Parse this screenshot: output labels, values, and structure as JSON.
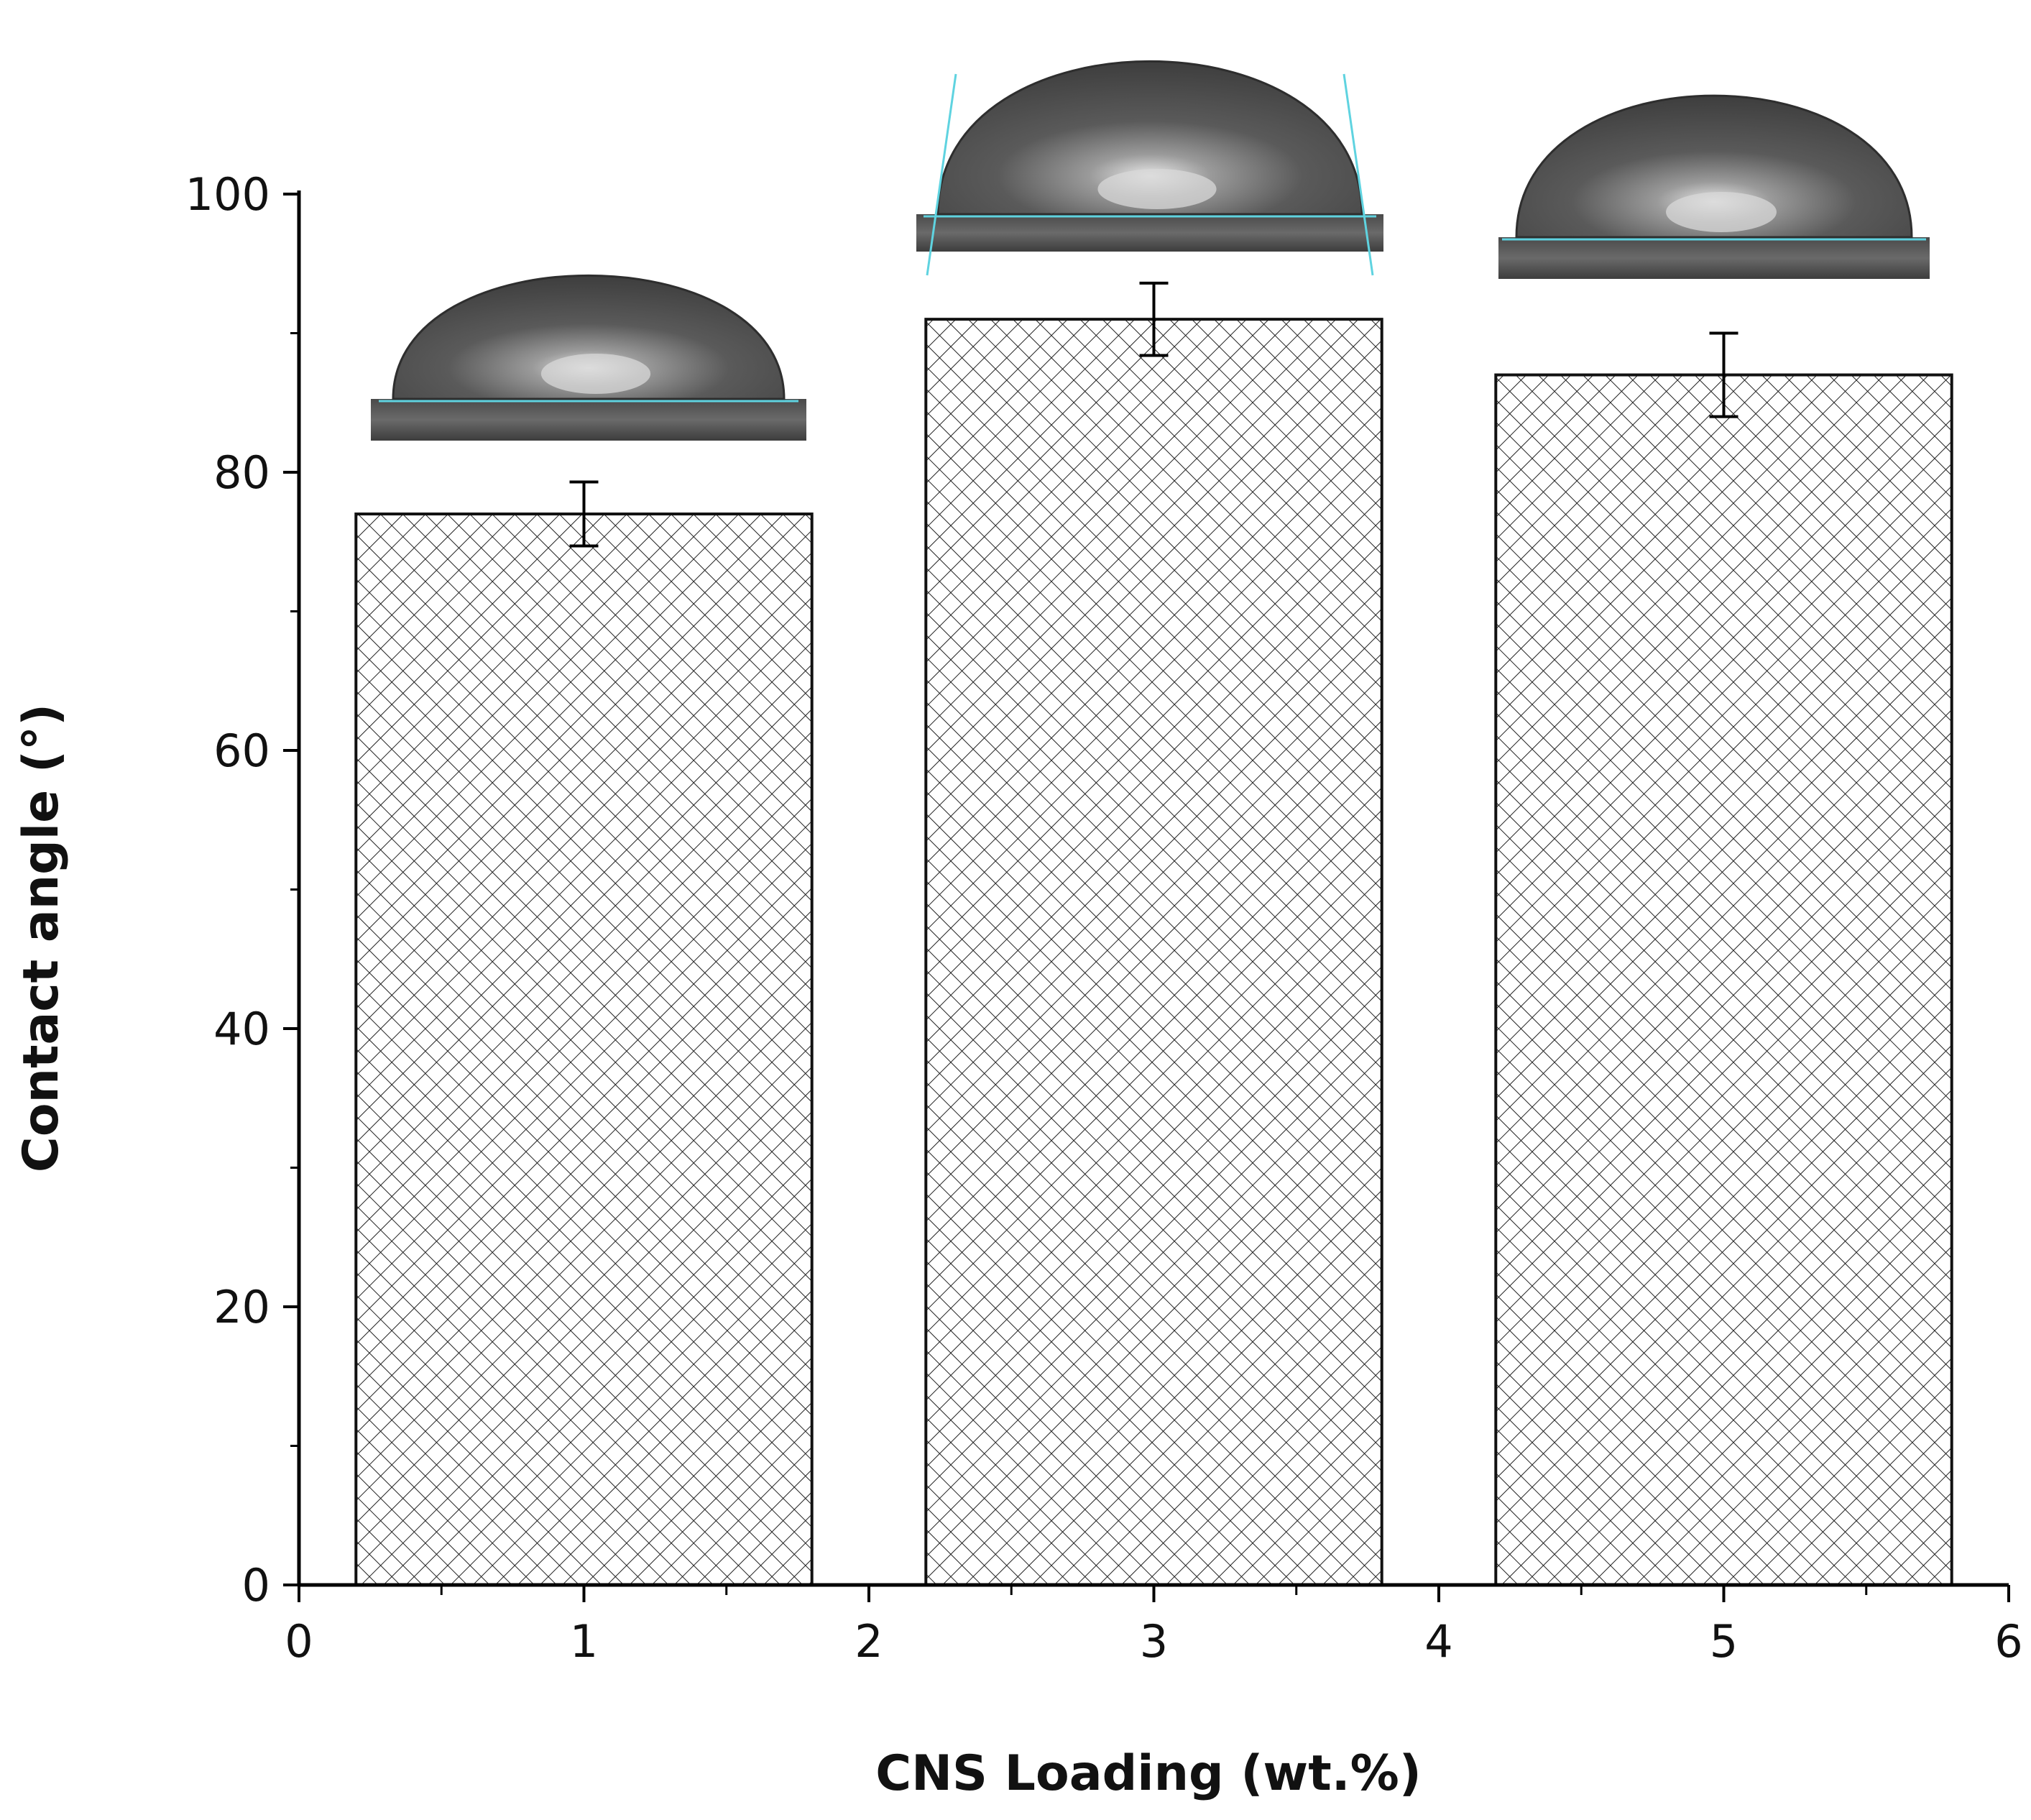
{
  "chart_data": {
    "type": "bar",
    "title": "",
    "xlabel": "CNS Loading (wt.%)",
    "ylabel": "Contact angle (°)",
    "xlim": [
      0,
      6
    ],
    "ylim": [
      0,
      100
    ],
    "x_ticks": [
      "0",
      "1",
      "2",
      "3",
      "4",
      "5",
      "6"
    ],
    "y_ticks": [
      "0",
      "20",
      "40",
      "60",
      "80",
      "100"
    ],
    "grid": false,
    "legend": "none",
    "bar_pattern": "crosshatch",
    "x": [
      1,
      3,
      5
    ],
    "values": [
      77,
      91,
      87
    ],
    "errors": [
      2.3,
      2.6,
      3.0
    ],
    "insets": [
      {
        "x": 1,
        "description": "droplet-photo",
        "contact_line_color": "#5fd3e0"
      },
      {
        "x": 3,
        "description": "droplet-photo",
        "contact_line_color": "#5fd3e0"
      },
      {
        "x": 5,
        "description": "droplet-photo",
        "contact_line_color": "#5fd3e0"
      }
    ]
  }
}
